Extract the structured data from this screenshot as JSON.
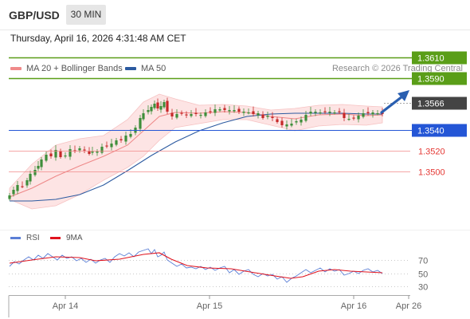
{
  "header": {
    "symbol": "GBP/USD",
    "timeframe": "30 MIN",
    "timestamp": "Thursday, April 16, 2026 4:31:48 AM CET"
  },
  "legend": {
    "ma20": "MA 20 + Bollinger Bands",
    "ma50": "MA 50",
    "credit": "Research © 2026 Trading Central"
  },
  "rsi_legend": {
    "rsi": "RSI",
    "ma9": "9MA"
  },
  "colors": {
    "up": "#3e8e3a",
    "down": "#c62828",
    "ma20": "#ee8888",
    "ma50": "#2c5aa0",
    "band_fill": "#fde2e2",
    "resistance": "#5a9e18",
    "support": "#2456d6",
    "target": "#e53935",
    "current": "#444444",
    "rsi": "#5b7fd6",
    "ma9": "#e0131e",
    "arrow": "#2a5fb0"
  },
  "chart_data": {
    "type": "candlestick",
    "yaxis_visible_range": [
      1.338,
      1.3632
    ],
    "x_labels": [
      "Apr 14",
      "Apr 15",
      "Apr 16",
      "Apr 26"
    ],
    "levels": [
      {
        "label": "1.3610",
        "value": 1.361,
        "kind": "resistance"
      },
      {
        "label": "1.3590",
        "value": 1.359,
        "kind": "resistance"
      },
      {
        "label": "1.3566",
        "value": 1.3566,
        "kind": "current"
      },
      {
        "label": "1.3540",
        "value": 1.354,
        "kind": "support"
      },
      {
        "label": "1.3520",
        "value": 1.352,
        "kind": "target"
      },
      {
        "label": "1.3500",
        "value": 1.35,
        "kind": "target"
      }
    ],
    "forecast": "up",
    "rsi": {
      "ticks": [
        70,
        50,
        30
      ],
      "range": [
        10,
        95
      ]
    }
  }
}
